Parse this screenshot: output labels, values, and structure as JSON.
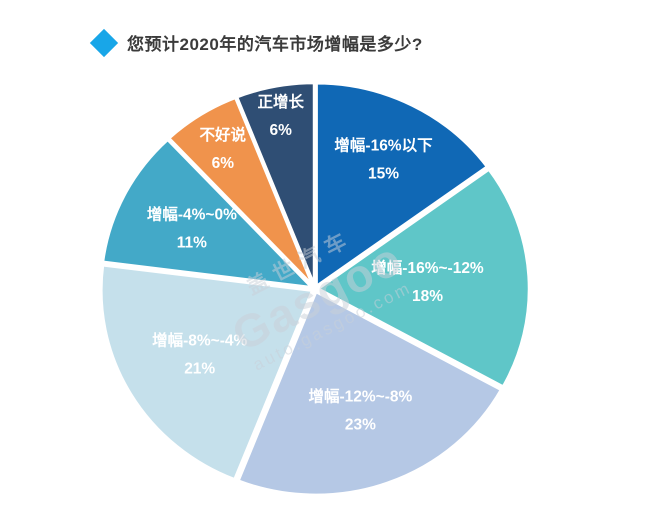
{
  "header": {
    "title": "您预计2020年的汽车市场增幅是多少?",
    "diamond_color": "#18a6e8"
  },
  "watermark": {
    "line1": "盖世汽车",
    "line2": "Gasgoo",
    "line3": "auto.gasgoo.com"
  },
  "chart_data": {
    "type": "pie",
    "title": "您预计2020年的汽车市场增幅是多少?",
    "categories": [
      "增幅-16%以下",
      "增幅-16%~-12%",
      "增幅-12%~-8%",
      "增幅-8%~-4%",
      "增幅-4%~0%",
      "不好说",
      "正增长"
    ],
    "values": [
      15,
      18,
      23,
      21,
      11,
      6,
      6
    ],
    "value_labels": [
      "15%",
      "18%",
      "23%",
      "21%",
      "11%",
      "6%",
      "6%"
    ],
    "colors": [
      "#1068b5",
      "#5fc6c8",
      "#b5c8e5",
      "#c5e0eb",
      "#43a9c8",
      "#f0934c",
      "#2f4e74"
    ],
    "slice_border_color": "#ffffff",
    "label_color": "#ffffff",
    "start_angle_deg": 0,
    "direction": "clockwise",
    "legend_position": "none",
    "labels_inside": true
  }
}
